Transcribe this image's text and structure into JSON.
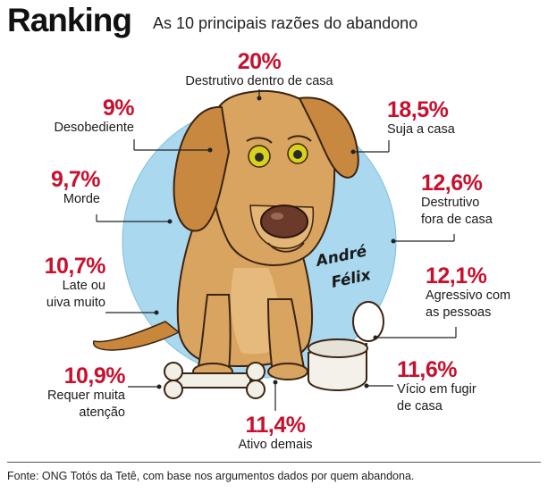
{
  "header": {
    "title": "Ranking",
    "subtitle": "As 10 principais razões do abandono"
  },
  "items": [
    {
      "id": "destrutivo-dentro",
      "percent": "20%",
      "label": [
        "Destrutivo dentro de casa"
      ]
    },
    {
      "id": "suja",
      "percent": "18,5%",
      "label": [
        "Suja a casa"
      ]
    },
    {
      "id": "destrutivo-fora",
      "percent": "12,6%",
      "label": [
        "Destrutivo",
        "fora de casa"
      ]
    },
    {
      "id": "agressivo",
      "percent": "12,1%",
      "label": [
        "Agressivo com",
        "as pessoas"
      ]
    },
    {
      "id": "fugir",
      "percent": "11,6%",
      "label": [
        "Vício em fugir",
        "de casa"
      ]
    },
    {
      "id": "ativo",
      "percent": "11,4%",
      "label": [
        "Ativo demais"
      ]
    },
    {
      "id": "atencao",
      "percent": "10,9%",
      "label": [
        "Requer muita",
        "atenção"
      ]
    },
    {
      "id": "late",
      "percent": "10,7%",
      "label": [
        "Late ou",
        "uiva muito"
      ]
    },
    {
      "id": "morde",
      "percent": "9,7%",
      "label": [
        "Morde"
      ]
    },
    {
      "id": "desobediente",
      "percent": "9%",
      "label": [
        "Desobediente"
      ]
    }
  ],
  "illustration": {
    "signature": "André Félix",
    "colors": {
      "circle": "#a9d8ef",
      "dog": "#d9a360",
      "dog_shadow": "#b07a3a",
      "nose": "#6b3a2a",
      "eyes": "#d8d21c"
    }
  },
  "footer": {
    "source": "Fonte: ONG Totós da Tetê, com base nos argumentos dados por quem abandona."
  },
  "accent_color": "#c8102e"
}
